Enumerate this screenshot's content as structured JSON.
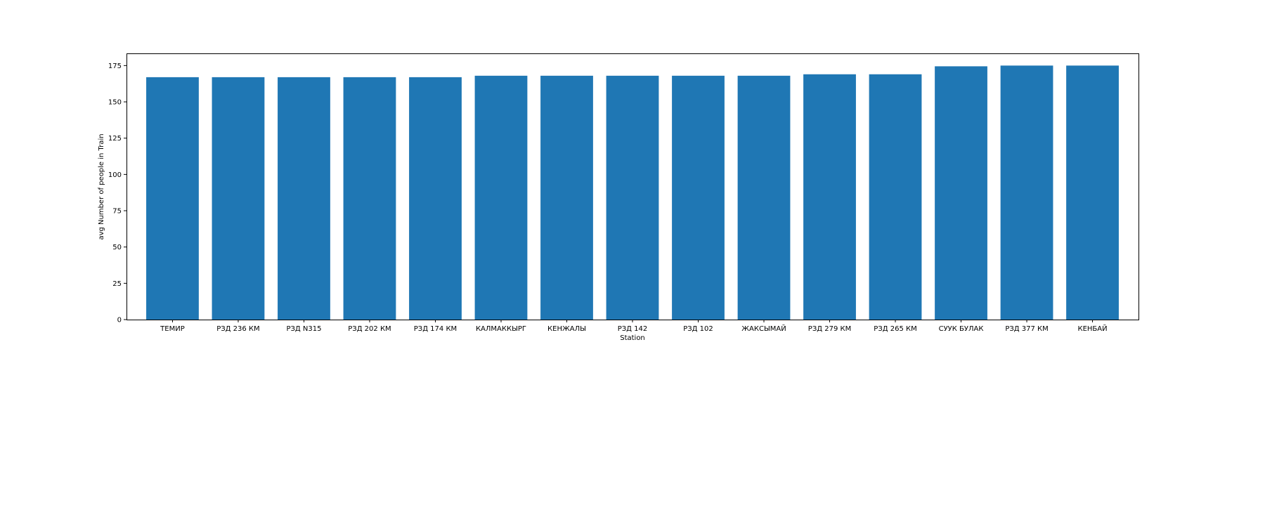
{
  "chart_data": {
    "type": "bar",
    "title": "",
    "xlabel": "Station",
    "ylabel": "avg Number of people in Train",
    "categories": [
      "ТЕМИР",
      "РЗД 236 КМ",
      "РЗД N315",
      "РЗД 202 КМ",
      "РЗД 174 КМ",
      "КАЛМАККЫРГ",
      "КЕНЖАЛЫ",
      "РЗД 142",
      "РЗД 102",
      "ЖАКСЫМАЙ",
      "РЗД 279 КМ",
      "РЗД 265 КМ",
      "СУУК БУЛАК",
      "РЗД 377 КМ",
      "КЕНБАЙ"
    ],
    "values": [
      167,
      167,
      167,
      167,
      167,
      168,
      168,
      168,
      168,
      168,
      169,
      169,
      174.5,
      175,
      175
    ],
    "ylim": [
      0,
      183.4
    ],
    "yticks": [
      0,
      25,
      50,
      75,
      100,
      125,
      150,
      175
    ],
    "bar_color": "#1f77b4",
    "grid": false,
    "legend": "none"
  }
}
